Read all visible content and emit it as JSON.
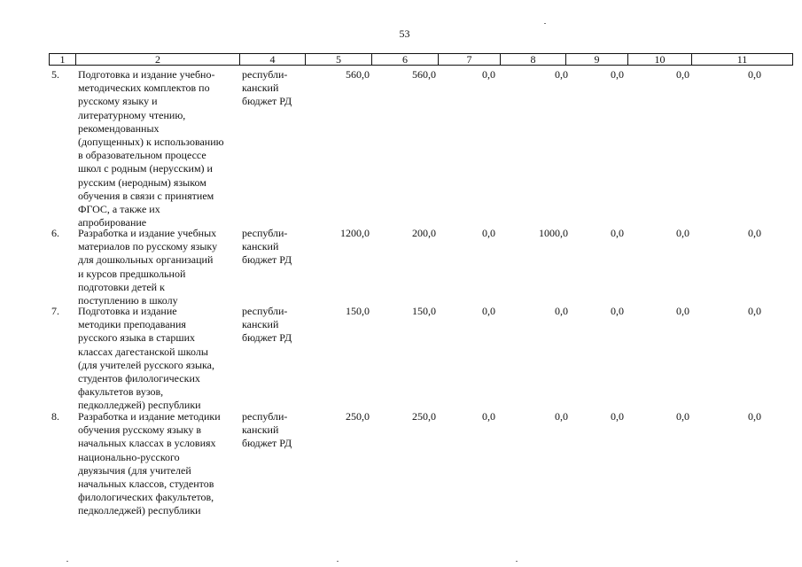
{
  "page_number": "53",
  "header": [
    "1",
    "2",
    "4",
    "5",
    "6",
    "7",
    "8",
    "9",
    "10",
    "11"
  ],
  "rows": [
    {
      "num": "5.",
      "name": [
        "Подготовка и издание учебно-",
        "методических комплектов по",
        "русскому языку и",
        "литературному чтению,",
        "рекомендованных",
        "(допущенных) к использованию",
        "в образовательном процессе",
        "школ с родным (нерусским) и",
        "русским (неродным) языком",
        "обучения в связи с принятием",
        "ФГОС, а также их",
        "апробирование"
      ],
      "source": [
        "республи-",
        "канский",
        "бюджет РД"
      ],
      "values": [
        "560,0",
        "560,0",
        "0,0",
        "0,0",
        "0,0",
        "0,0",
        "0,0"
      ]
    },
    {
      "num": "6.",
      "name": [
        "Разработка и издание учебных",
        "материалов по русскому языку",
        "для дошкольных организаций",
        "и курсов предшкольной",
        "подготовки детей к",
        "поступлению в школу"
      ],
      "source": [
        "республи-",
        "канский",
        "бюджет РД"
      ],
      "values": [
        "1200,0",
        "200,0",
        "0,0",
        "1000,0",
        "0,0",
        "0,0",
        "0,0"
      ]
    },
    {
      "num": "7.",
      "name": [
        "Подготовка и издание",
        "методики преподавания",
        "русского языка в старших",
        "классах дагестанской школы",
        "(для учителей русского языка,",
        "студентов филологических",
        "факультетов вузов,",
        "педколледжей) республики"
      ],
      "source": [
        "республи-",
        "канский",
        "бюджет РД"
      ],
      "values": [
        "150,0",
        "150,0",
        "0,0",
        "0,0",
        "0,0",
        "0,0",
        "0,0"
      ]
    },
    {
      "num": "8.",
      "name": [
        "Разработка и издание методики",
        "обучения русскому языку в",
        "начальных классах в условиях",
        "национально-русского",
        "двуязычия (для учителей",
        "начальных классов, студентов",
        "филологических факультетов,",
        "педколледжей) республики"
      ],
      "source": [
        "республи-",
        "канский",
        "бюджет РД"
      ],
      "values": [
        "250,0",
        "250,0",
        "0,0",
        "0,0",
        "0,0",
        "0,0",
        "0,0"
      ]
    }
  ]
}
